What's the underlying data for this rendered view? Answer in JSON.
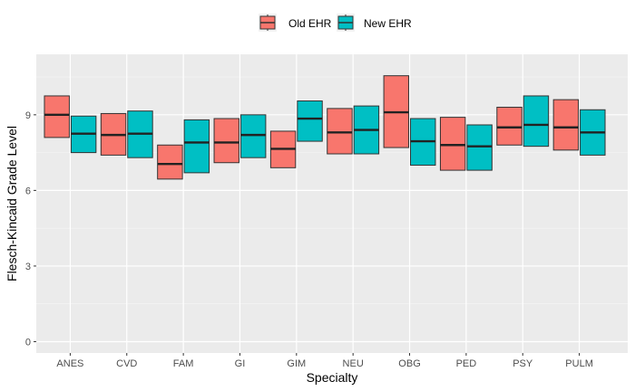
{
  "chart_data": {
    "type": "box",
    "xlabel": "Specialty",
    "ylabel": "Flesch-Kincaid Grade Level",
    "ylim": [
      -0.45,
      11.4
    ],
    "yticks": [
      0,
      3,
      6,
      9
    ],
    "ytick_labels": [
      "0",
      "3",
      "6",
      "9"
    ],
    "categories": [
      "ANES",
      "CVD",
      "FAM",
      "GI",
      "GIM",
      "NEU",
      "OBG",
      "PED",
      "PSY",
      "PULM"
    ],
    "grid": true,
    "legend_position": "top",
    "series": [
      {
        "name": "Old EHR",
        "color": "#F8766D",
        "boxes": [
          {
            "lower": 8.1,
            "median": 9.0,
            "upper": 9.75
          },
          {
            "lower": 7.4,
            "median": 8.2,
            "upper": 9.05
          },
          {
            "lower": 6.45,
            "median": 7.05,
            "upper": 7.8
          },
          {
            "lower": 7.1,
            "median": 7.9,
            "upper": 8.85
          },
          {
            "lower": 6.9,
            "median": 7.65,
            "upper": 8.35
          },
          {
            "lower": 7.45,
            "median": 8.3,
            "upper": 9.25
          },
          {
            "lower": 7.7,
            "median": 9.1,
            "upper": 10.55
          },
          {
            "lower": 6.8,
            "median": 7.8,
            "upper": 8.9
          },
          {
            "lower": 7.8,
            "median": 8.5,
            "upper": 9.3
          },
          {
            "lower": 7.6,
            "median": 8.5,
            "upper": 9.6
          }
        ]
      },
      {
        "name": "New EHR",
        "color": "#00BFC4",
        "boxes": [
          {
            "lower": 7.5,
            "median": 8.25,
            "upper": 8.95
          },
          {
            "lower": 7.3,
            "median": 8.25,
            "upper": 9.15
          },
          {
            "lower": 6.7,
            "median": 7.9,
            "upper": 8.8
          },
          {
            "lower": 7.3,
            "median": 8.2,
            "upper": 9.0
          },
          {
            "lower": 7.95,
            "median": 8.85,
            "upper": 9.55
          },
          {
            "lower": 7.45,
            "median": 8.4,
            "upper": 9.35
          },
          {
            "lower": 7.0,
            "median": 7.95,
            "upper": 8.85
          },
          {
            "lower": 6.8,
            "median": 7.75,
            "upper": 8.6
          },
          {
            "lower": 7.75,
            "median": 8.6,
            "upper": 9.75
          },
          {
            "lower": 7.4,
            "median": 8.3,
            "upper": 9.2
          }
        ]
      }
    ]
  }
}
